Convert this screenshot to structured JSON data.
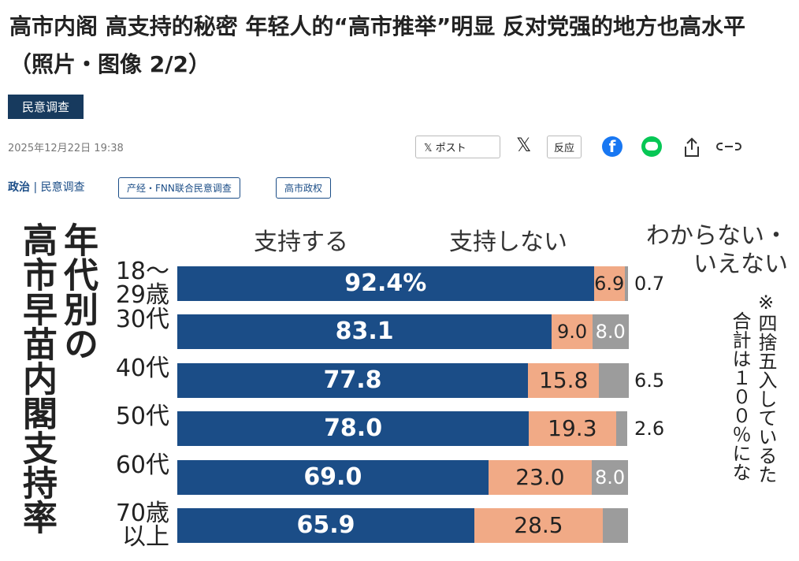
{
  "header": {
    "title": "高市内阁 高支持的秘密 年轻人的“高市推举”明显 反对党强的地方也高水平（照片・图像 2/2）",
    "section": "民意调查",
    "date": "2025年12月22日 19:38"
  },
  "share": {
    "post": "ポスト",
    "react": "反应"
  },
  "breadcrumb": {
    "items": [
      "政治",
      "民意调查"
    ],
    "tags": [
      "产经・FNN联合民意调查",
      "高市政权"
    ]
  },
  "chart_data": {
    "type": "stacked-bar",
    "orientation": "horizontal",
    "title": "高市早苗内閣支持率",
    "subtitle": "年代別の",
    "categories": [
      "18～29歳",
      "30代",
      "40代",
      "50代",
      "60代",
      "70歳以上"
    ],
    "series": [
      {
        "name": "支持する",
        "color": "#1b4d87",
        "values": [
          92.4,
          83.1,
          77.8,
          78.0,
          69.0,
          65.9
        ],
        "value_labels": [
          "92.4%",
          "83.1",
          "77.8",
          "78.0",
          "69.0",
          "65.9"
        ]
      },
      {
        "name": "支持しない",
        "color": "#f1aa86",
        "values": [
          6.9,
          9.0,
          15.8,
          19.3,
          23.0,
          28.5
        ],
        "value_labels": [
          "6.9",
          "9.0",
          "15.8",
          "19.3",
          "23.0",
          "28.5"
        ]
      },
      {
        "name": "わからない・いえない",
        "color": "#9c9c9c",
        "values": [
          0.7,
          8.0,
          6.5,
          2.6,
          8.0,
          5.6
        ],
        "value_labels": [
          "0.7",
          "8.0",
          "6.5",
          "2.6",
          "8.0",
          null
        ]
      }
    ],
    "xlim": [
      0,
      100
    ],
    "note": "※四捨五入しているた",
    "note2": "合計は１００％にな"
  }
}
